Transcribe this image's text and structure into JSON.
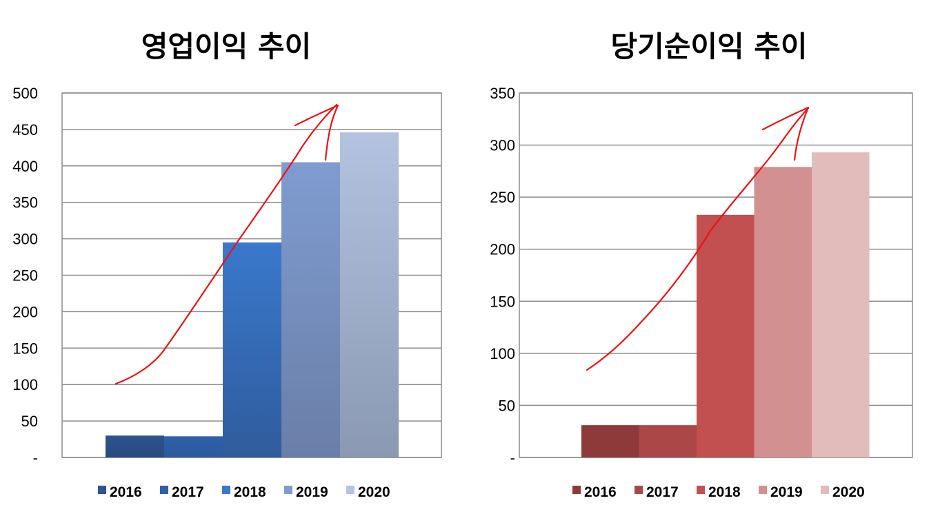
{
  "chart_data": [
    {
      "type": "bar",
      "title": "영업이익 추이",
      "categories": [
        "2016",
        "2017",
        "2018",
        "2019",
        "2020"
      ],
      "values": [
        30,
        29,
        295,
        405,
        446
      ],
      "ylim": [
        0,
        500
      ],
      "yticks": [
        0,
        50,
        100,
        150,
        200,
        250,
        300,
        350,
        400,
        450,
        500
      ],
      "ytick_labels": [
        "-",
        "50",
        "100",
        "150",
        "200",
        "250",
        "300",
        "350",
        "400",
        "450",
        "500"
      ],
      "grid": true,
      "legend_position": "bottom",
      "colors": [
        "#2c5490",
        "#2f60a8",
        "#3a78cc",
        "#7f9cd0",
        "#b3c3e0"
      ],
      "colors_bottom": [
        "#2a4a80",
        "#2c5a9e",
        "#2f5c9c",
        "#6a7ea8",
        "#8a98b2"
      ],
      "annotation": "hand-drawn red upward arrow",
      "annotation_color": "#ee1111"
    },
    {
      "type": "bar",
      "title": "당기순이익 추이",
      "categories": [
        "2016",
        "2017",
        "2018",
        "2019",
        "2020"
      ],
      "values": [
        31,
        31,
        233,
        279,
        293
      ],
      "ylim": [
        0,
        350
      ],
      "yticks": [
        0,
        50,
        100,
        150,
        200,
        250,
        300,
        350
      ],
      "ytick_labels": [
        "-",
        "50",
        "100",
        "150",
        "200",
        "250",
        "300",
        "350"
      ],
      "grid": true,
      "legend_position": "bottom",
      "colors": [
        "#8f3a3a",
        "#ab4747",
        "#c25050",
        "#d39090",
        "#e2bbbb"
      ],
      "colors_bottom": [
        "#8f3a3a",
        "#ab4747",
        "#c25050",
        "#d39090",
        "#e2bbbb"
      ],
      "annotation": "hand-drawn red upward arrow",
      "annotation_color": "#ee1111"
    }
  ]
}
